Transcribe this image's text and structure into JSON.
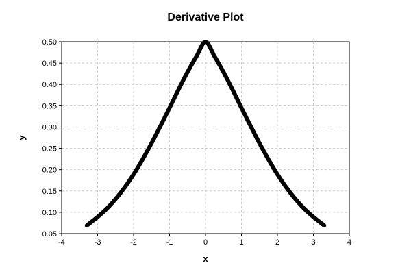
{
  "chart_data": {
    "type": "line",
    "title": "Derivative Plot",
    "xlabel": "x",
    "ylabel": "y",
    "xlim": [
      -4,
      4
    ],
    "ylim": [
      0.05,
      0.5
    ],
    "xticks": [
      -4,
      -3,
      -2,
      -1,
      0,
      1,
      2,
      3,
      4
    ],
    "yticks": [
      0.05,
      0.1,
      0.15,
      0.2,
      0.25,
      0.3,
      0.35,
      0.4,
      0.45,
      0.5
    ],
    "xtick_labels": [
      "-4",
      "-3",
      "-2",
      "-1",
      "0",
      "1",
      "2",
      "3",
      "4"
    ],
    "ytick_labels": [
      "0.05",
      "0.10",
      "0.15",
      "0.20",
      "0.25",
      "0.30",
      "0.35",
      "0.40",
      "0.45",
      "0.50"
    ],
    "grid": true,
    "series": [
      {
        "color": "#000000",
        "x": [
          -3.3,
          -3.0,
          -2.75,
          -2.5,
          -2.25,
          -2.0,
          -1.75,
          -1.5,
          -1.25,
          -1.0,
          -0.75,
          -0.5,
          -0.25,
          0.0,
          0.25,
          0.5,
          0.75,
          1.0,
          1.25,
          1.5,
          1.75,
          2.0,
          2.25,
          2.5,
          2.75,
          3.0,
          3.3
        ],
        "y": [
          0.069,
          0.089,
          0.108,
          0.131,
          0.158,
          0.189,
          0.224,
          0.262,
          0.303,
          0.345,
          0.388,
          0.429,
          0.466,
          0.5,
          0.466,
          0.429,
          0.388,
          0.345,
          0.303,
          0.262,
          0.224,
          0.189,
          0.158,
          0.131,
          0.108,
          0.089,
          0.069
        ]
      }
    ]
  }
}
